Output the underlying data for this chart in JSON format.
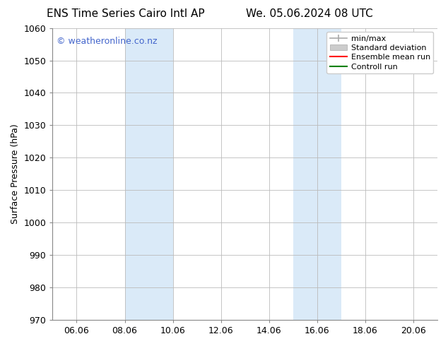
{
  "title_left": "ENS Time Series Cairo Intl AP",
  "title_right": "We. 05.06.2024 08 UTC",
  "ylabel": "Surface Pressure (hPa)",
  "ylim": [
    970,
    1060
  ],
  "yticks": [
    970,
    980,
    990,
    1000,
    1010,
    1020,
    1030,
    1040,
    1050,
    1060
  ],
  "xtick_labels": [
    "06.06",
    "08.06",
    "10.06",
    "12.06",
    "14.06",
    "16.06",
    "18.06",
    "20.06"
  ],
  "xtick_positions": [
    1,
    3,
    5,
    7,
    9,
    11,
    13,
    15
  ],
  "x_min": 0,
  "x_max": 16,
  "shaded_bands": [
    {
      "x_start": 3,
      "x_end": 5,
      "color": "#daeaf8"
    },
    {
      "x_start": 10,
      "x_end": 12,
      "color": "#daeaf8"
    }
  ],
  "watermark_text": "© weatheronline.co.nz",
  "watermark_color": "#4466cc",
  "watermark_fontsize": 9,
  "legend_entries": [
    {
      "label": "min/max",
      "type": "minmax",
      "color": "#aaaaaa"
    },
    {
      "label": "Standard deviation",
      "type": "stddev",
      "color": "#cccccc"
    },
    {
      "label": "Ensemble mean run",
      "type": "line",
      "color": "red"
    },
    {
      "label": "Controll run",
      "type": "line",
      "color": "green"
    }
  ],
  "bg_color": "#ffffff",
  "grid_color": "#bbbbbb",
  "title_fontsize": 11,
  "ylabel_fontsize": 9,
  "tick_fontsize": 9,
  "legend_fontsize": 8
}
